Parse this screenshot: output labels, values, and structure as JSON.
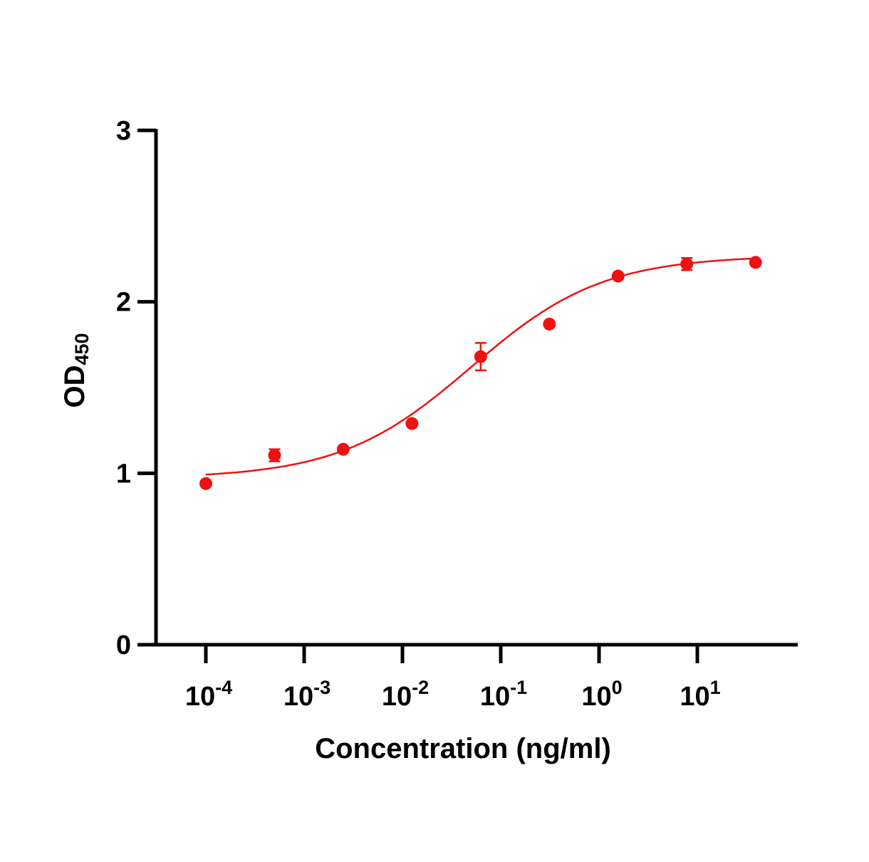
{
  "chart_data": {
    "type": "scatter",
    "title": "",
    "xlabel": "Concentration (ng/ml)",
    "ylabel": "OD",
    "ylabel_subscript": "450",
    "xscale": "log",
    "xlim": [
      3e-05,
      120
    ],
    "ylim": [
      0,
      3
    ],
    "grid": false,
    "color": "#ee1111",
    "yticks": [
      {
        "value": 0,
        "label": "0"
      },
      {
        "value": 1,
        "label": "1"
      },
      {
        "value": 2,
        "label": "2"
      },
      {
        "value": 3,
        "label": "3"
      }
    ],
    "xticks": [
      {
        "exp": -4,
        "base": "10",
        "sup": "-4"
      },
      {
        "exp": -3,
        "base": "10",
        "sup": "-3"
      },
      {
        "exp": -2,
        "base": "10",
        "sup": "-2"
      },
      {
        "exp": -1,
        "base": "10",
        "sup": "-1"
      },
      {
        "exp": 0,
        "base": "10",
        "sup": "0"
      },
      {
        "exp": 1,
        "base": "10",
        "sup": "1"
      }
    ],
    "series": [
      {
        "name": "OD450",
        "x": [
          0.0001,
          0.0005,
          0.0025,
          0.0125,
          0.0625,
          0.3125,
          1.5625,
          7.8125,
          39.0625
        ],
        "y": [
          0.94,
          1.105,
          1.14,
          1.29,
          1.68,
          1.87,
          2.15,
          2.22,
          2.23
        ],
        "error": [
          0.01,
          0.035,
          0.01,
          0.01,
          0.08,
          0.01,
          0.01,
          0.035,
          0.01
        ]
      }
    ],
    "fit": {
      "model": "4PL",
      "bottom": 0.97,
      "top": 2.27,
      "logEC50": -1.3,
      "hill": 0.65,
      "x_range": [
        0.0001,
        39.0625
      ]
    }
  }
}
